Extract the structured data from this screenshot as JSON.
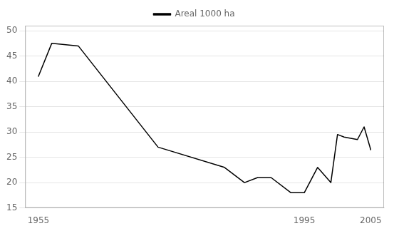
{
  "chart_data": {
    "type": "line",
    "x": [
      1955,
      1957,
      1961,
      1973,
      1983,
      1986,
      1988,
      1990,
      1993,
      1995,
      1997,
      1999,
      2000,
      2001,
      2003,
      2004,
      2005
    ],
    "series": [
      {
        "name": "Areal 1000 ha",
        "color": "#000000",
        "values": [
          41,
          47.5,
          47,
          27,
          23,
          20,
          21,
          21,
          18,
          18,
          23,
          20,
          29.5,
          29,
          28.5,
          31,
          26.5
        ]
      }
    ],
    "xlim": [
      1953,
      2007
    ],
    "xticks": [
      1955,
      1995,
      2005
    ],
    "ylim": [
      15,
      51
    ],
    "yticks": [
      15,
      20,
      25,
      30,
      35,
      40,
      45,
      50
    ],
    "grid": true,
    "legend": "top"
  }
}
